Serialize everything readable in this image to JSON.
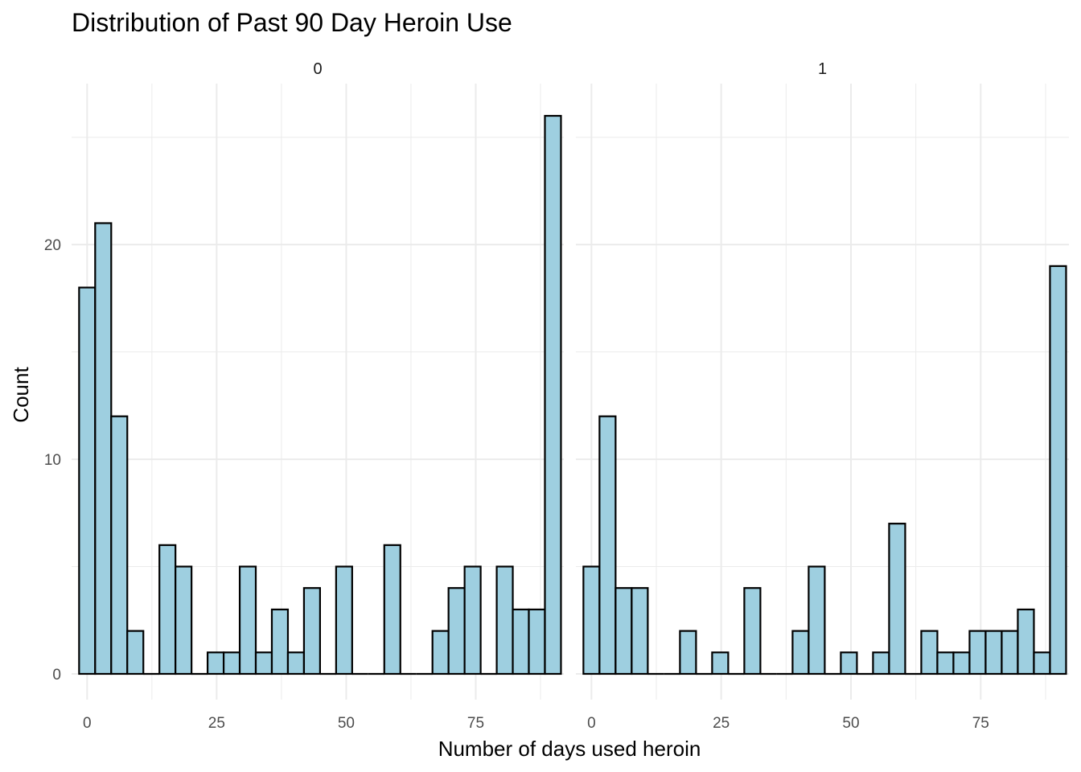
{
  "chart_data": {
    "type": "bar",
    "title": "Distribution of Past 90 Day Heroin Use",
    "xlabel": "Number of days used heroin",
    "ylabel": "Count",
    "xlim": [
      -3,
      92
    ],
    "ylim": [
      -1.2,
      27.5
    ],
    "x_ticks": [
      0,
      25,
      50,
      75
    ],
    "y_ticks": [
      0,
      10,
      20
    ],
    "grid": true,
    "bin_width": 3.1,
    "bin_centers": [
      0.0,
      3.1,
      6.2,
      9.3,
      12.4,
      15.5,
      18.6,
      21.7,
      24.8,
      27.9,
      31.0,
      34.1,
      37.2,
      40.3,
      43.4,
      46.5,
      49.6,
      52.7,
      55.8,
      58.9,
      62.0,
      65.1,
      68.2,
      71.3,
      74.4,
      77.5,
      80.6,
      83.7,
      86.8,
      89.9
    ],
    "colors": {
      "bar_fill": "#9ecfe0",
      "bar_stroke": "#000000",
      "grid": "#ebebeb"
    },
    "panels": [
      {
        "strip": "0",
        "counts": [
          18,
          21,
          12,
          2,
          0,
          6,
          5,
          0,
          1,
          1,
          5,
          1,
          3,
          1,
          4,
          0,
          5,
          0,
          0,
          6,
          0,
          0,
          2,
          4,
          5,
          0,
          5,
          3,
          3,
          26
        ]
      },
      {
        "strip": "1",
        "counts": [
          5,
          12,
          4,
          4,
          0,
          0,
          2,
          0,
          1,
          0,
          4,
          0,
          0,
          2,
          5,
          0,
          1,
          0,
          1,
          7,
          0,
          2,
          1,
          1,
          2,
          2,
          2,
          3,
          1,
          19
        ]
      }
    ]
  }
}
